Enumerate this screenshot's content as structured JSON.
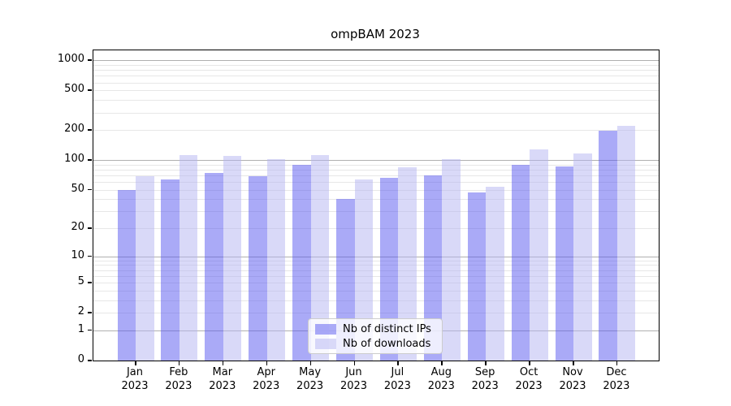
{
  "title": "ompBAM 2023",
  "chart_data": {
    "type": "bar",
    "title": "ompBAM 2023",
    "categories": [
      "Jan",
      "Feb",
      "Mar",
      "Apr",
      "May",
      "Jun",
      "Jul",
      "Aug",
      "Sep",
      "Oct",
      "Nov",
      "Dec"
    ],
    "year": "2023",
    "series": [
      {
        "name": "Nb of distinct IPs",
        "color": "rgba(85,85,240,0.5)",
        "values": [
          50,
          63,
          74,
          68,
          89,
          40,
          66,
          70,
          47,
          90,
          86,
          197
        ]
      },
      {
        "name": "Nb of downloads",
        "color": "rgba(179,179,241,0.5)",
        "values": [
          69,
          112,
          110,
          102,
          112,
          64,
          85,
          102,
          54,
          129,
          117,
          222
        ]
      }
    ],
    "xlabel": "",
    "ylabel": "",
    "yscale": "log1p",
    "y_ticks": [
      0,
      1,
      2,
      5,
      10,
      20,
      50,
      100,
      200,
      500,
      1000
    ],
    "ylim": [
      0,
      1258
    ],
    "grid": true,
    "legend_position": "lower center"
  },
  "colors": {
    "bar_distinct_ips": "rgba(85,85,240,0.5)",
    "bar_downloads": "rgba(179,179,241,0.5)",
    "grid_major": "#b0b0b0",
    "grid_minor": "#e7e7e7",
    "axis": "#000000",
    "background": "#ffffff"
  }
}
